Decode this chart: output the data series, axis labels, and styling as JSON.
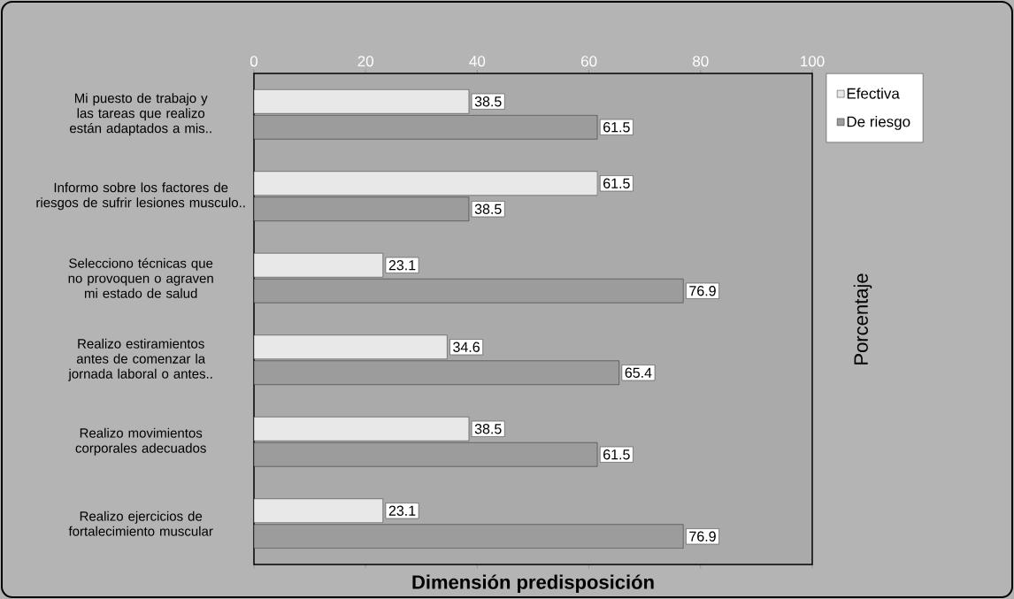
{
  "chart_data": {
    "type": "bar",
    "orientation": "horizontal",
    "title": "Dimensión predisposición",
    "annotations": [
      "Porcentaje"
    ],
    "categories": [
      "Mi puesto de trabajo y las tareas que realizo están adaptados a mis..",
      "Informo sobre los factores de riesgos de sufrir lesiones musculo..",
      "Selecciono técnicas que no provoquen o agraven mi estado de salud",
      "Realizo estiramientos antes de comenzar la jornada laboral o antes..",
      "Realizo movimientos corporales adecuados",
      "Realizo ejercicios de fortalecimiento muscular"
    ],
    "series": [
      {
        "name": "Efectiva",
        "color": "#e8e8e8",
        "values": [
          38.5,
          61.5,
          23.1,
          34.6,
          38.5,
          23.1
        ]
      },
      {
        "name": "De riesgo",
        "color": "#9c9c9c",
        "values": [
          61.5,
          38.5,
          76.9,
          65.4,
          61.5,
          76.9
        ]
      }
    ],
    "xlim": [
      0,
      100
    ],
    "xticks": [
      0,
      20,
      40,
      60,
      80,
      100
    ],
    "data_labels": true,
    "legend": "top right"
  }
}
